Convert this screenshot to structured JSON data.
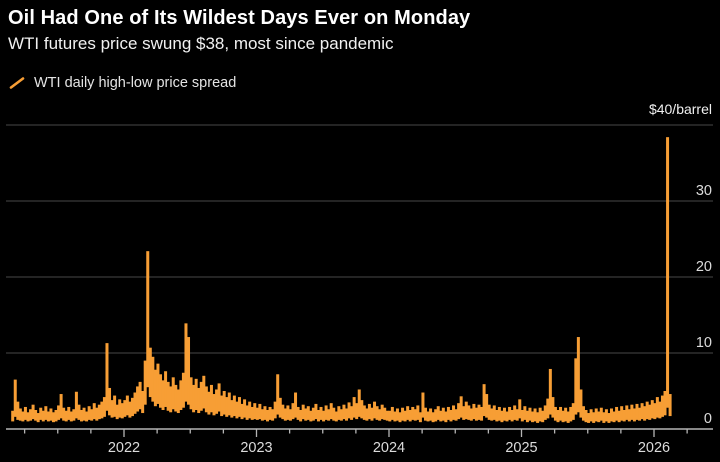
{
  "header": {
    "title": "Oil Had One of Its Wildest Days Ever on Monday",
    "subtitle": "WTI futures price swung $38, most since pandemic"
  },
  "legend": {
    "label": "WTI daily high-low price spread",
    "marker": "diagonal-line"
  },
  "colors": {
    "background": "#000000",
    "series": "#F79E35",
    "grid": "#3B3B3B",
    "axis": "#B5B5B5",
    "title_text": "#FFFFFF",
    "tick_label": "#DCDCDC"
  },
  "chart_data": {
    "type": "area",
    "title": "Oil Had One of Its Wildest Days Ever on Monday",
    "subtitle": "WTI futures price swung $38, most since pandemic",
    "unit_top_label": "$40/barrel",
    "ylabel": "$/barrel",
    "xlabel": "",
    "ylim": [
      0,
      40
    ],
    "yticks": [
      0,
      10,
      20,
      30
    ],
    "gridlines": [
      10,
      20,
      30,
      40
    ],
    "xticks": [
      2022,
      2023,
      2024,
      2025,
      2026
    ],
    "minor_xtick_interval": 0.25,
    "x_axis_range": [
      2021.1,
      2026.45
    ],
    "legend_position": "top-left",
    "grid": "horizontal",
    "series": [
      {
        "name": "WTI daily high-low price spread",
        "x_start": 2021.16,
        "points_per_year": 52,
        "hi": [
          2.4,
          6.5,
          3.6,
          2.7,
          2.3,
          2.9,
          2.2,
          2.6,
          3.2,
          2.5,
          2.1,
          2.8,
          2.4,
          3.0,
          2.3,
          2.7,
          2.2,
          2.5,
          3.1,
          4.6,
          2.8,
          2.4,
          2.9,
          2.3,
          2.6,
          4.9,
          3.2,
          2.5,
          2.8,
          2.3,
          3.0,
          2.6,
          3.4,
          2.8,
          3.2,
          3.6,
          4.2,
          11.3,
          5.4,
          3.8,
          4.4,
          3.2,
          3.9,
          3.4,
          3.8,
          4.4,
          3.6,
          4.1,
          4.8,
          5.6,
          6.2,
          5.0,
          9.0,
          23.4,
          10.7,
          9.5,
          7.8,
          8.6,
          7.2,
          6.4,
          7.6,
          6.2,
          5.6,
          6.8,
          5.8,
          5.2,
          6.4,
          7.4,
          13.9,
          12.1,
          6.8,
          5.8,
          6.6,
          5.4,
          6.2,
          7.0,
          5.6,
          4.9,
          5.8,
          4.6,
          5.2,
          6.0,
          4.4,
          5.0,
          4.2,
          4.8,
          3.8,
          4.4,
          3.6,
          4.2,
          3.3,
          3.9,
          3.1,
          3.6,
          2.9,
          3.4,
          2.8,
          3.3,
          2.6,
          3.0,
          2.5,
          2.9,
          2.6,
          3.6,
          7.2,
          4.1,
          3.2,
          2.7,
          3.1,
          2.6,
          3.4,
          4.8,
          2.9,
          2.5,
          3.2,
          2.7,
          3.0,
          2.4,
          2.8,
          3.3,
          2.5,
          2.9,
          2.4,
          3.1,
          2.6,
          3.4,
          2.8,
          2.3,
          3.0,
          2.6,
          3.2,
          2.7,
          3.5,
          3.0,
          4.2,
          3.4,
          5.2,
          3.8,
          3.1,
          2.7,
          3.3,
          2.8,
          3.6,
          3.0,
          2.6,
          3.2,
          2.8,
          2.4,
          2.4,
          2.9,
          2.3,
          2.7,
          2.2,
          2.8,
          2.4,
          3.0,
          2.5,
          2.9,
          2.6,
          3.1,
          2.2,
          4.8,
          2.8,
          2.3,
          2.7,
          2.2,
          2.6,
          3.0,
          2.4,
          2.8,
          2.3,
          2.9,
          2.5,
          3.1,
          2.6,
          3.4,
          4.3,
          3.0,
          3.6,
          3.1,
          2.7,
          3.3,
          2.8,
          3.2,
          2.9,
          5.9,
          4.6,
          3.2,
          2.7,
          3.1,
          2.5,
          2.9,
          2.4,
          2.8,
          2.3,
          2.9,
          2.5,
          3.1,
          2.6,
          3.9,
          2.5,
          3.0,
          2.4,
          2.8,
          2.3,
          2.7,
          2.2,
          2.8,
          2.4,
          3.1,
          4.0,
          7.9,
          4.2,
          2.9,
          2.5,
          2.9,
          2.4,
          2.8,
          2.3,
          2.9,
          3.4,
          9.3,
          12.1,
          5.2,
          3.0,
          2.5,
          2.1,
          2.6,
          2.2,
          2.7,
          2.3,
          2.8,
          2.2,
          2.6,
          2.1,
          2.7,
          2.3,
          2.9,
          2.4,
          3.0,
          2.5,
          3.1,
          2.6,
          3.2,
          2.7,
          3.3,
          2.8,
          3.4,
          3.0,
          3.6,
          3.2,
          3.8,
          3.4,
          4.2,
          3.6,
          4.4,
          5.0,
          38.4,
          4.6
        ],
        "lo": [
          1.0,
          1.6,
          1.2,
          1.1,
          1.0,
          1.2,
          1.0,
          1.1,
          1.3,
          1.1,
          0.9,
          1.2,
          1.0,
          1.2,
          1.0,
          1.1,
          0.9,
          1.0,
          1.2,
          1.4,
          1.1,
          1.0,
          1.2,
          1.0,
          1.1,
          1.4,
          1.2,
          1.0,
          1.1,
          1.0,
          1.2,
          1.1,
          1.3,
          1.1,
          1.3,
          1.4,
          1.6,
          2.4,
          1.8,
          1.5,
          1.6,
          1.3,
          1.5,
          1.4,
          1.6,
          1.8,
          1.5,
          1.7,
          2.0,
          2.3,
          2.6,
          2.1,
          3.2,
          5.5,
          4.2,
          3.6,
          3.0,
          3.3,
          2.8,
          2.5,
          2.9,
          2.4,
          2.2,
          2.6,
          2.3,
          2.1,
          2.5,
          2.8,
          3.6,
          3.2,
          2.6,
          2.2,
          2.5,
          2.1,
          2.4,
          2.7,
          2.2,
          1.9,
          2.2,
          1.8,
          2.0,
          2.3,
          1.7,
          1.9,
          1.6,
          1.8,
          1.5,
          1.7,
          1.4,
          1.6,
          1.3,
          1.5,
          1.2,
          1.4,
          1.2,
          1.3,
          1.2,
          1.3,
          1.1,
          1.2,
          1.0,
          1.2,
          1.1,
          1.4,
          1.9,
          1.5,
          1.3,
          1.1,
          1.2,
          1.1,
          1.3,
          1.5,
          1.2,
          1.0,
          1.3,
          1.1,
          1.2,
          1.0,
          1.1,
          1.3,
          1.0,
          1.2,
          1.0,
          1.2,
          1.1,
          1.3,
          1.1,
          1.0,
          1.2,
          1.1,
          1.3,
          1.1,
          1.4,
          1.2,
          1.5,
          1.3,
          1.6,
          1.4,
          1.2,
          1.1,
          1.3,
          1.1,
          1.4,
          1.2,
          1.1,
          1.3,
          1.2,
          1.1,
          1.0,
          1.2,
          1.0,
          1.1,
          0.9,
          1.1,
          1.0,
          1.2,
          1.0,
          1.2,
          1.1,
          1.2,
          0.9,
          1.5,
          1.1,
          1.0,
          1.1,
          0.9,
          1.0,
          1.2,
          1.0,
          1.1,
          0.9,
          1.2,
          1.0,
          1.2,
          1.1,
          1.3,
          1.5,
          1.2,
          1.3,
          1.2,
          1.1,
          1.3,
          1.1,
          1.2,
          1.1,
          1.7,
          1.5,
          1.2,
          1.1,
          1.2,
          1.0,
          1.1,
          0.9,
          1.1,
          1.0,
          1.2,
          1.0,
          1.2,
          1.1,
          1.4,
          1.0,
          1.2,
          0.9,
          1.1,
          0.9,
          1.0,
          0.8,
          1.0,
          0.9,
          1.2,
          1.4,
          1.9,
          1.5,
          1.1,
          0.9,
          1.1,
          0.9,
          1.0,
          0.8,
          1.0,
          1.2,
          1.9,
          2.2,
          1.5,
          1.1,
          0.9,
          0.8,
          1.0,
          0.8,
          1.0,
          0.9,
          1.1,
          0.8,
          1.0,
          0.8,
          1.0,
          0.9,
          1.1,
          0.9,
          1.1,
          1.0,
          1.2,
          1.0,
          1.2,
          1.0,
          1.2,
          1.1,
          1.3,
          1.1,
          1.3,
          1.2,
          1.4,
          1.3,
          1.5,
          1.4,
          1.6,
          1.8,
          2.8,
          1.7
        ]
      }
    ]
  }
}
